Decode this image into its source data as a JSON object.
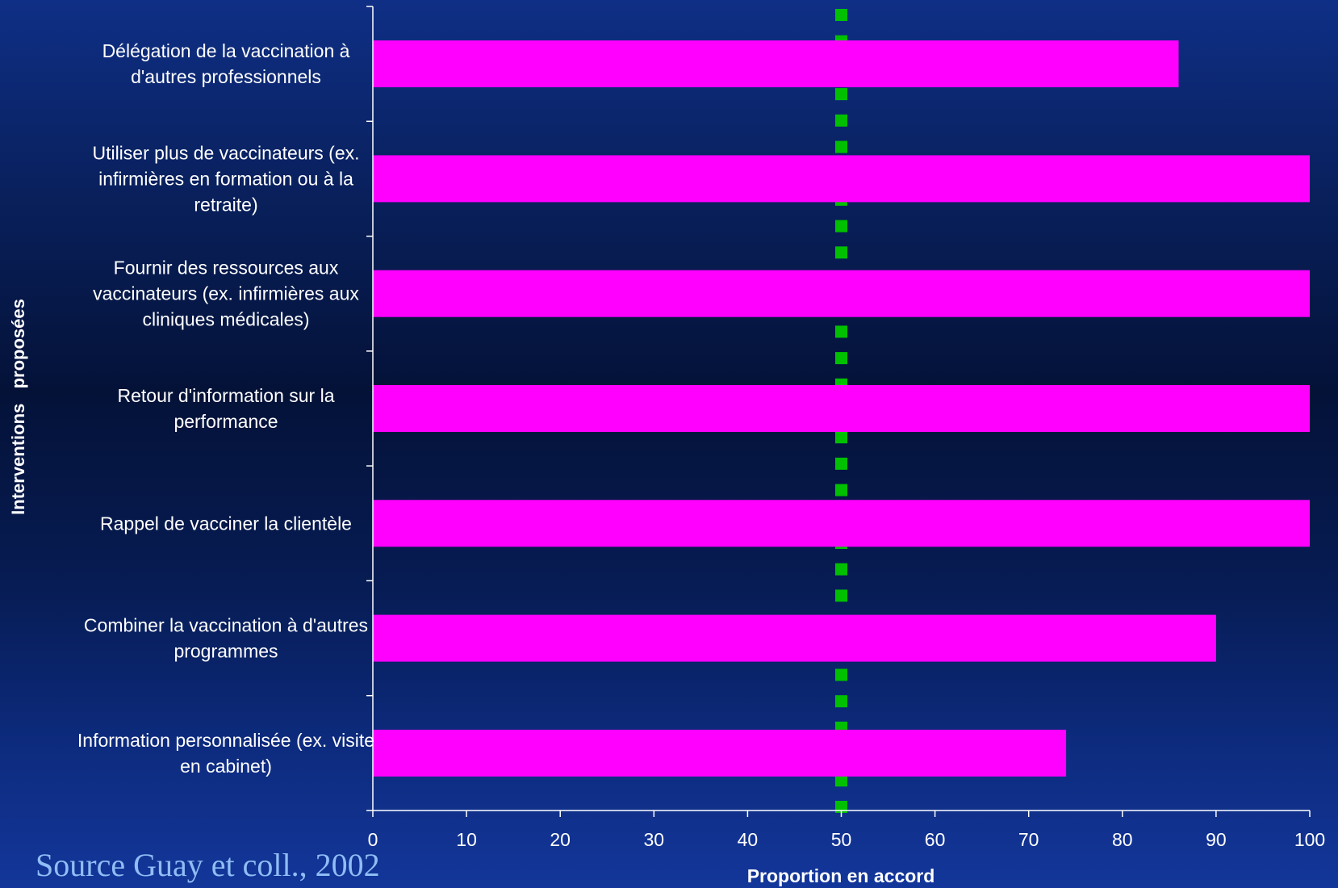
{
  "colors": {
    "bar": "#ff00ff",
    "reference_line": "#00c000",
    "axis": "#ffffff",
    "text": "#ffffff",
    "source_text": "#8fbdf5"
  },
  "source": "Source Guay et coll., 2002",
  "chart_data": {
    "type": "bar",
    "orientation": "horizontal",
    "categories": [
      "Délégation de la vaccination à d'autres professionnels",
      "Utiliser plus de vaccinateurs (ex. infirmières en formation ou à la retraite)",
      "Fournir des ressources aux vaccinateurs (ex. infirmières aux cliniques médicales)",
      "Retour d'information sur la performance",
      "Rappel de vacciner la clientèle",
      "Combiner la vaccination à d'autres programmes",
      "Information personnalisée (ex. visite en cabinet)"
    ],
    "category_label_lines": [
      [
        "Délégation de la vaccination à",
        "d'autres professionnels"
      ],
      [
        "Utiliser plus de vaccinateurs (ex.",
        "infirmières en formation ou à la",
        "retraite)"
      ],
      [
        "Fournir des ressources aux",
        "vaccinateurs (ex. infirmières aux",
        "cliniques médicales)"
      ],
      [
        "Retour d'information sur la",
        "performance"
      ],
      [
        "Rappel de vacciner la clientèle"
      ],
      [
        "Combiner la vaccination à d'autres",
        "programmes"
      ],
      [
        "Information personnalisée (ex. visite",
        "en cabinet)"
      ]
    ],
    "values": [
      86,
      100,
      100,
      100,
      100,
      90,
      74
    ],
    "xlabel": "Proportion en accord",
    "ylabel": "Interventions   proposées",
    "xlim": [
      0,
      100
    ],
    "xticks": [
      0,
      10,
      20,
      30,
      40,
      50,
      60,
      70,
      80,
      90,
      100
    ],
    "reference_line": {
      "x": 50,
      "style": "dotted"
    },
    "grid": false,
    "legend": "none"
  }
}
